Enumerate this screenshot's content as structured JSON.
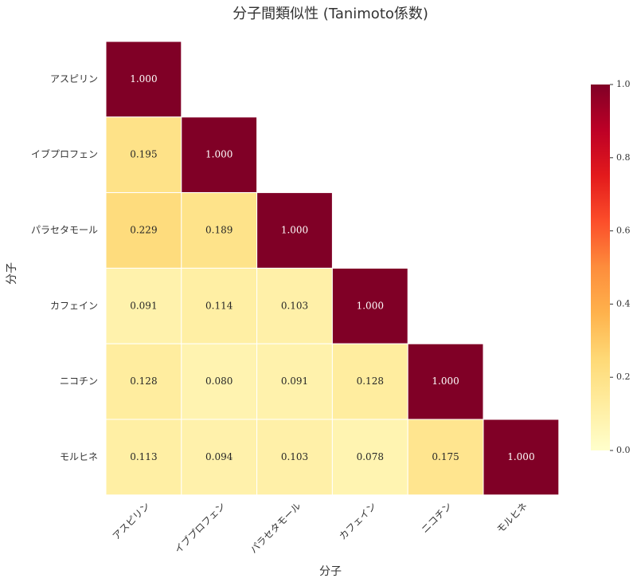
{
  "chart_data": {
    "type": "heatmap",
    "title": "分子間類似性 (Tanimoto係数)",
    "x_label": "分子",
    "y_label": "分子",
    "categories": [
      "アスピリン",
      "イブプロフェン",
      "パラセタモール",
      "カフェイン",
      "ニコチン",
      "モルヒネ"
    ],
    "values": [
      [
        1.0,
        null,
        null,
        null,
        null,
        null
      ],
      [
        0.195,
        1.0,
        null,
        null,
        null,
        null
      ],
      [
        0.229,
        0.189,
        1.0,
        null,
        null,
        null
      ],
      [
        0.091,
        0.114,
        0.103,
        1.0,
        null,
        null
      ],
      [
        0.128,
        0.08,
        0.091,
        0.128,
        1.0,
        null
      ],
      [
        0.113,
        0.094,
        0.103,
        0.078,
        0.175,
        1.0
      ]
    ],
    "value_labels": [
      [
        "1.000",
        null,
        null,
        null,
        null,
        null
      ],
      [
        "0.195",
        "1.000",
        null,
        null,
        null,
        null
      ],
      [
        "0.229",
        "0.189",
        "1.000",
        null,
        null,
        null
      ],
      [
        "0.091",
        "0.114",
        "0.103",
        "1.000",
        null,
        null
      ],
      [
        "0.128",
        "0.080",
        "0.091",
        "0.128",
        "1.000",
        null
      ],
      [
        "0.113",
        "0.094",
        "0.103",
        "0.078",
        "0.175",
        "1.000"
      ]
    ],
    "colormap": "YlOrRd",
    "clim": [
      0,
      1
    ],
    "cticks": [
      {
        "value": 0,
        "label": "0.0"
      },
      0.2,
      0.4,
      0.6,
      0.8,
      {
        "value": 1,
        "label": "1.0"
      }
    ]
  }
}
